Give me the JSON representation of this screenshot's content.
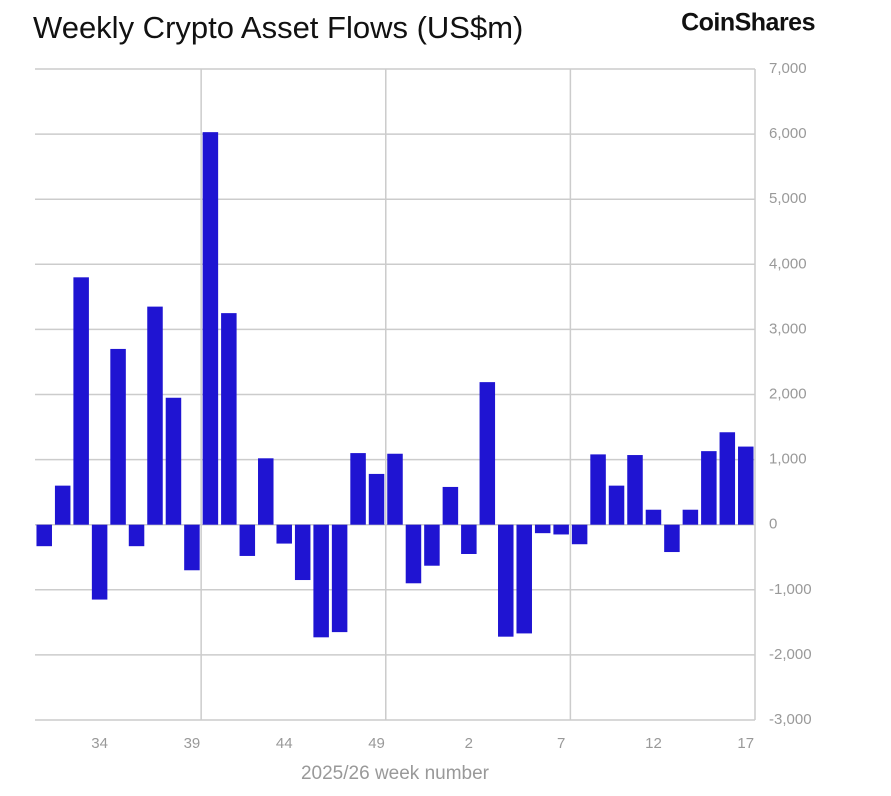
{
  "chart_data": {
    "type": "bar",
    "title": "Weekly Crypto Asset Flows (US$m)",
    "brand": "CoinShares",
    "x_label": "2025/26 week number",
    "categories": [
      null,
      null,
      null,
      "34",
      null,
      null,
      null,
      null,
      "39",
      null,
      null,
      null,
      null,
      "44",
      null,
      null,
      null,
      null,
      "49",
      null,
      null,
      null,
      null,
      "2",
      null,
      null,
      null,
      null,
      "7",
      null,
      null,
      null,
      null,
      "12",
      null,
      null,
      null,
      null,
      "17"
    ],
    "values": [
      -330,
      600,
      3800,
      -1150,
      2700,
      -330,
      3350,
      1950,
      -700,
      6030,
      3250,
      -480,
      1020,
      -290,
      -850,
      -1730,
      -1650,
      1100,
      780,
      1090,
      -900,
      -630,
      580,
      -450,
      2190,
      -1720,
      -1670,
      -130,
      -150,
      -300,
      1080,
      600,
      1070,
      230,
      -420,
      230,
      1130,
      1420,
      1200
    ],
    "color": "#1f14d2",
    "ylim": [
      -3000,
      7000
    ],
    "yticks": [
      {
        "value": -3000,
        "label": "-3,000"
      },
      {
        "value": -2000,
        "label": "-2,000"
      },
      {
        "value": -1000,
        "label": "-1,000"
      },
      0,
      {
        "value": 1000,
        "label": "1,000"
      },
      {
        "value": 2000,
        "label": "2,000"
      },
      {
        "value": 3000,
        "label": "3,000"
      },
      {
        "value": 4000,
        "label": "4,000"
      },
      {
        "value": 5000,
        "label": "5,000"
      },
      {
        "value": 6000,
        "label": "6,000"
      },
      {
        "value": 7000,
        "label": "7,000"
      }
    ],
    "grid": true
  }
}
